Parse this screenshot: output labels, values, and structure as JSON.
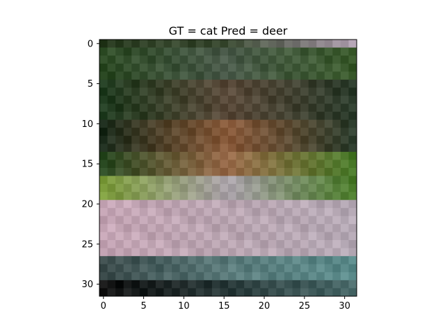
{
  "chart_data": {
    "type": "heatmap",
    "title": "GT = cat Pred = deer",
    "ground_truth": "cat",
    "prediction": "deer",
    "image_size": [
      32,
      32
    ],
    "x_ticks": [
      0,
      5,
      10,
      15,
      20,
      25,
      30
    ],
    "y_ticks": [
      0,
      5,
      10,
      15,
      20,
      25,
      30
    ],
    "xlim": [
      -0.5,
      31.5
    ],
    "ylim": [
      31.5,
      -0.5
    ],
    "bands": [
      {
        "rows": [
          0,
          0
        ],
        "left": "#2b3d22",
        "mid": "#3a4a32",
        "right": "#a898a8"
      },
      {
        "rows": [
          1,
          4
        ],
        "left": "#2c4a24",
        "mid": "#4a5a4a",
        "right": "#3a5a2c"
      },
      {
        "rows": [
          5,
          9
        ],
        "left": "#1e3a1e",
        "mid": "#5a4a3a",
        "right": "#2a3a2a"
      },
      {
        "rows": [
          10,
          13
        ],
        "left": "#1c2c1c",
        "mid": "#8a5a3a",
        "right": "#2c3c2c"
      },
      {
        "rows": [
          14,
          16
        ],
        "left": "#2a4a22",
        "mid": "#9a6a4a",
        "right": "#4a7a2a"
      },
      {
        "rows": [
          17,
          19
        ],
        "left": "#7a9a3a",
        "mid": "#a8a0a8",
        "right": "#4a7a2a"
      },
      {
        "rows": [
          20,
          26
        ],
        "left": "#c4a4b4",
        "mid": "#b8a4b0",
        "right": "#b4a8b4"
      },
      {
        "rows": [
          27,
          29
        ],
        "left": "#3a4a4a",
        "mid": "#5a7a7a",
        "right": "#5a8a8a"
      },
      {
        "rows": [
          30,
          31
        ],
        "left": "#101010",
        "mid": "#2a3a3a",
        "right": "#4a6a6a"
      }
    ]
  }
}
